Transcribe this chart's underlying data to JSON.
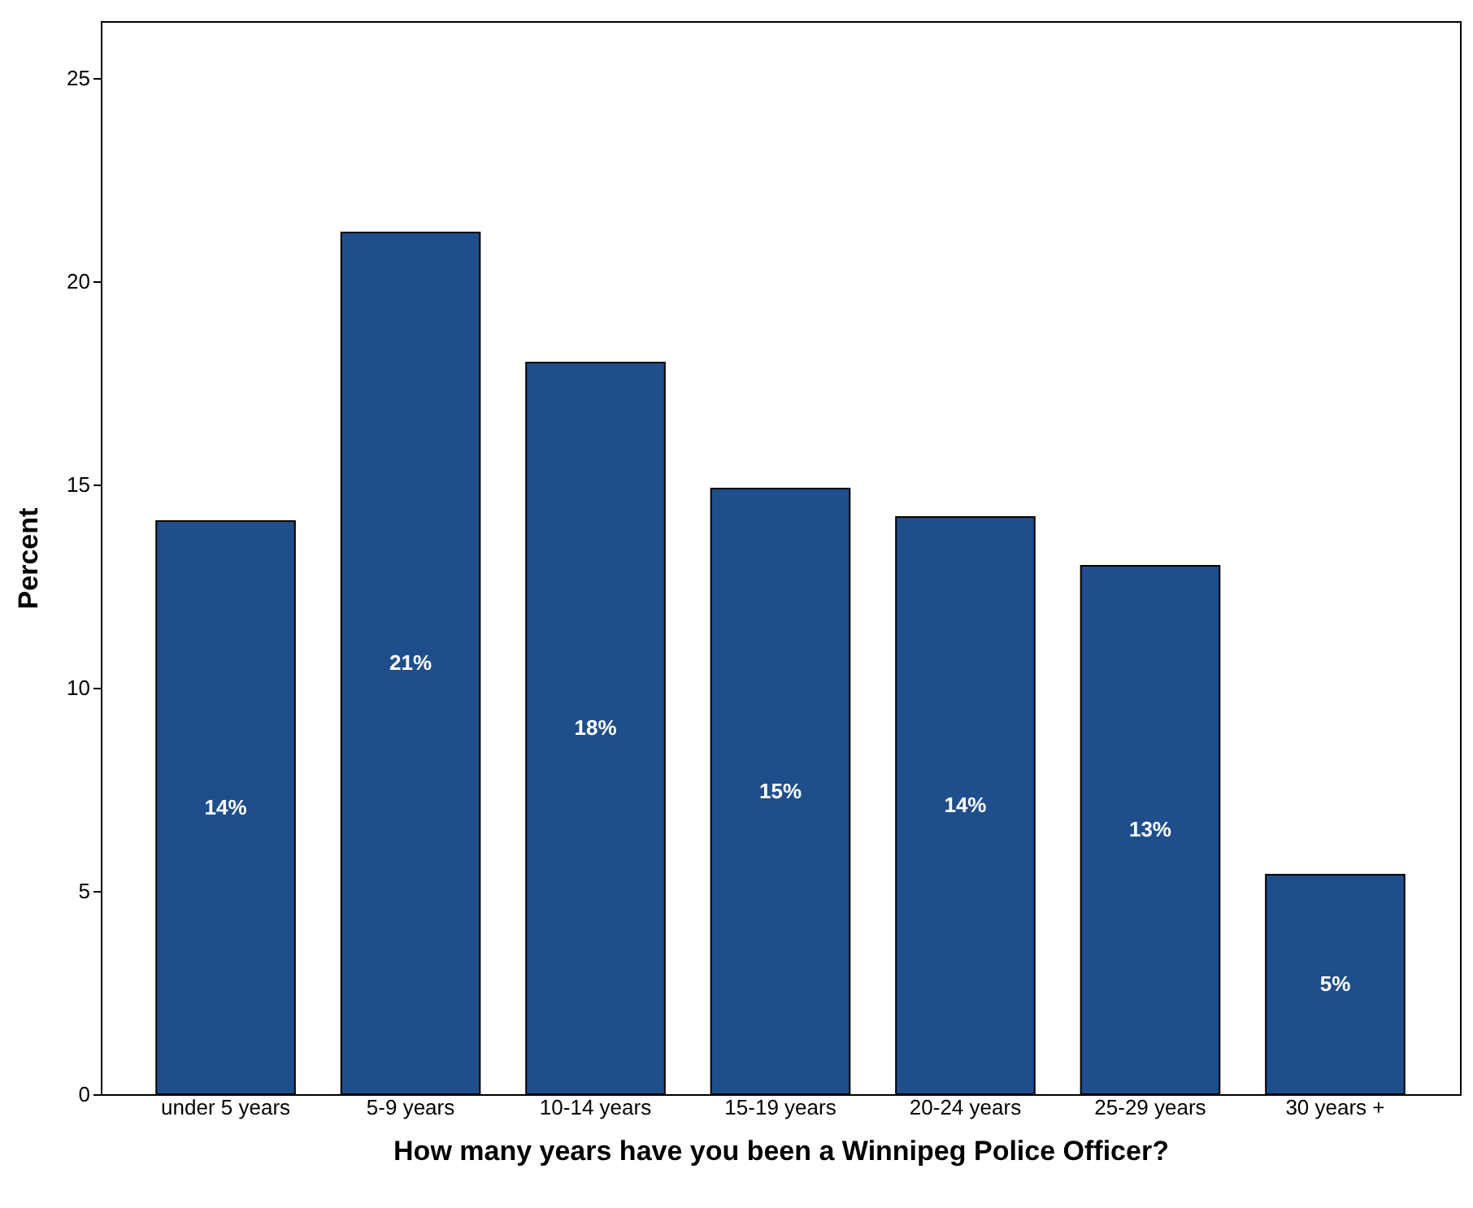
{
  "chart_data": {
    "type": "bar",
    "xlabel": "How many years have you been a Winnipeg Police Officer?",
    "ylabel": "Percent",
    "categories": [
      "under 5 years",
      "5-9 years",
      "10-14 years",
      "15-19 years",
      "20-24 years",
      "25-29 years",
      "30 years +"
    ],
    "values": [
      14.1,
      21.2,
      18.0,
      14.9,
      14.2,
      13.0,
      5.4
    ],
    "value_labels": [
      "14%",
      "21%",
      "18%",
      "15%",
      "14%",
      "13%",
      "5%"
    ],
    "color": "#1f4e8c",
    "ylim": [
      0,
      26.4
    ],
    "yticks": [
      0,
      5,
      10,
      15,
      20,
      25
    ],
    "grid": false
  }
}
